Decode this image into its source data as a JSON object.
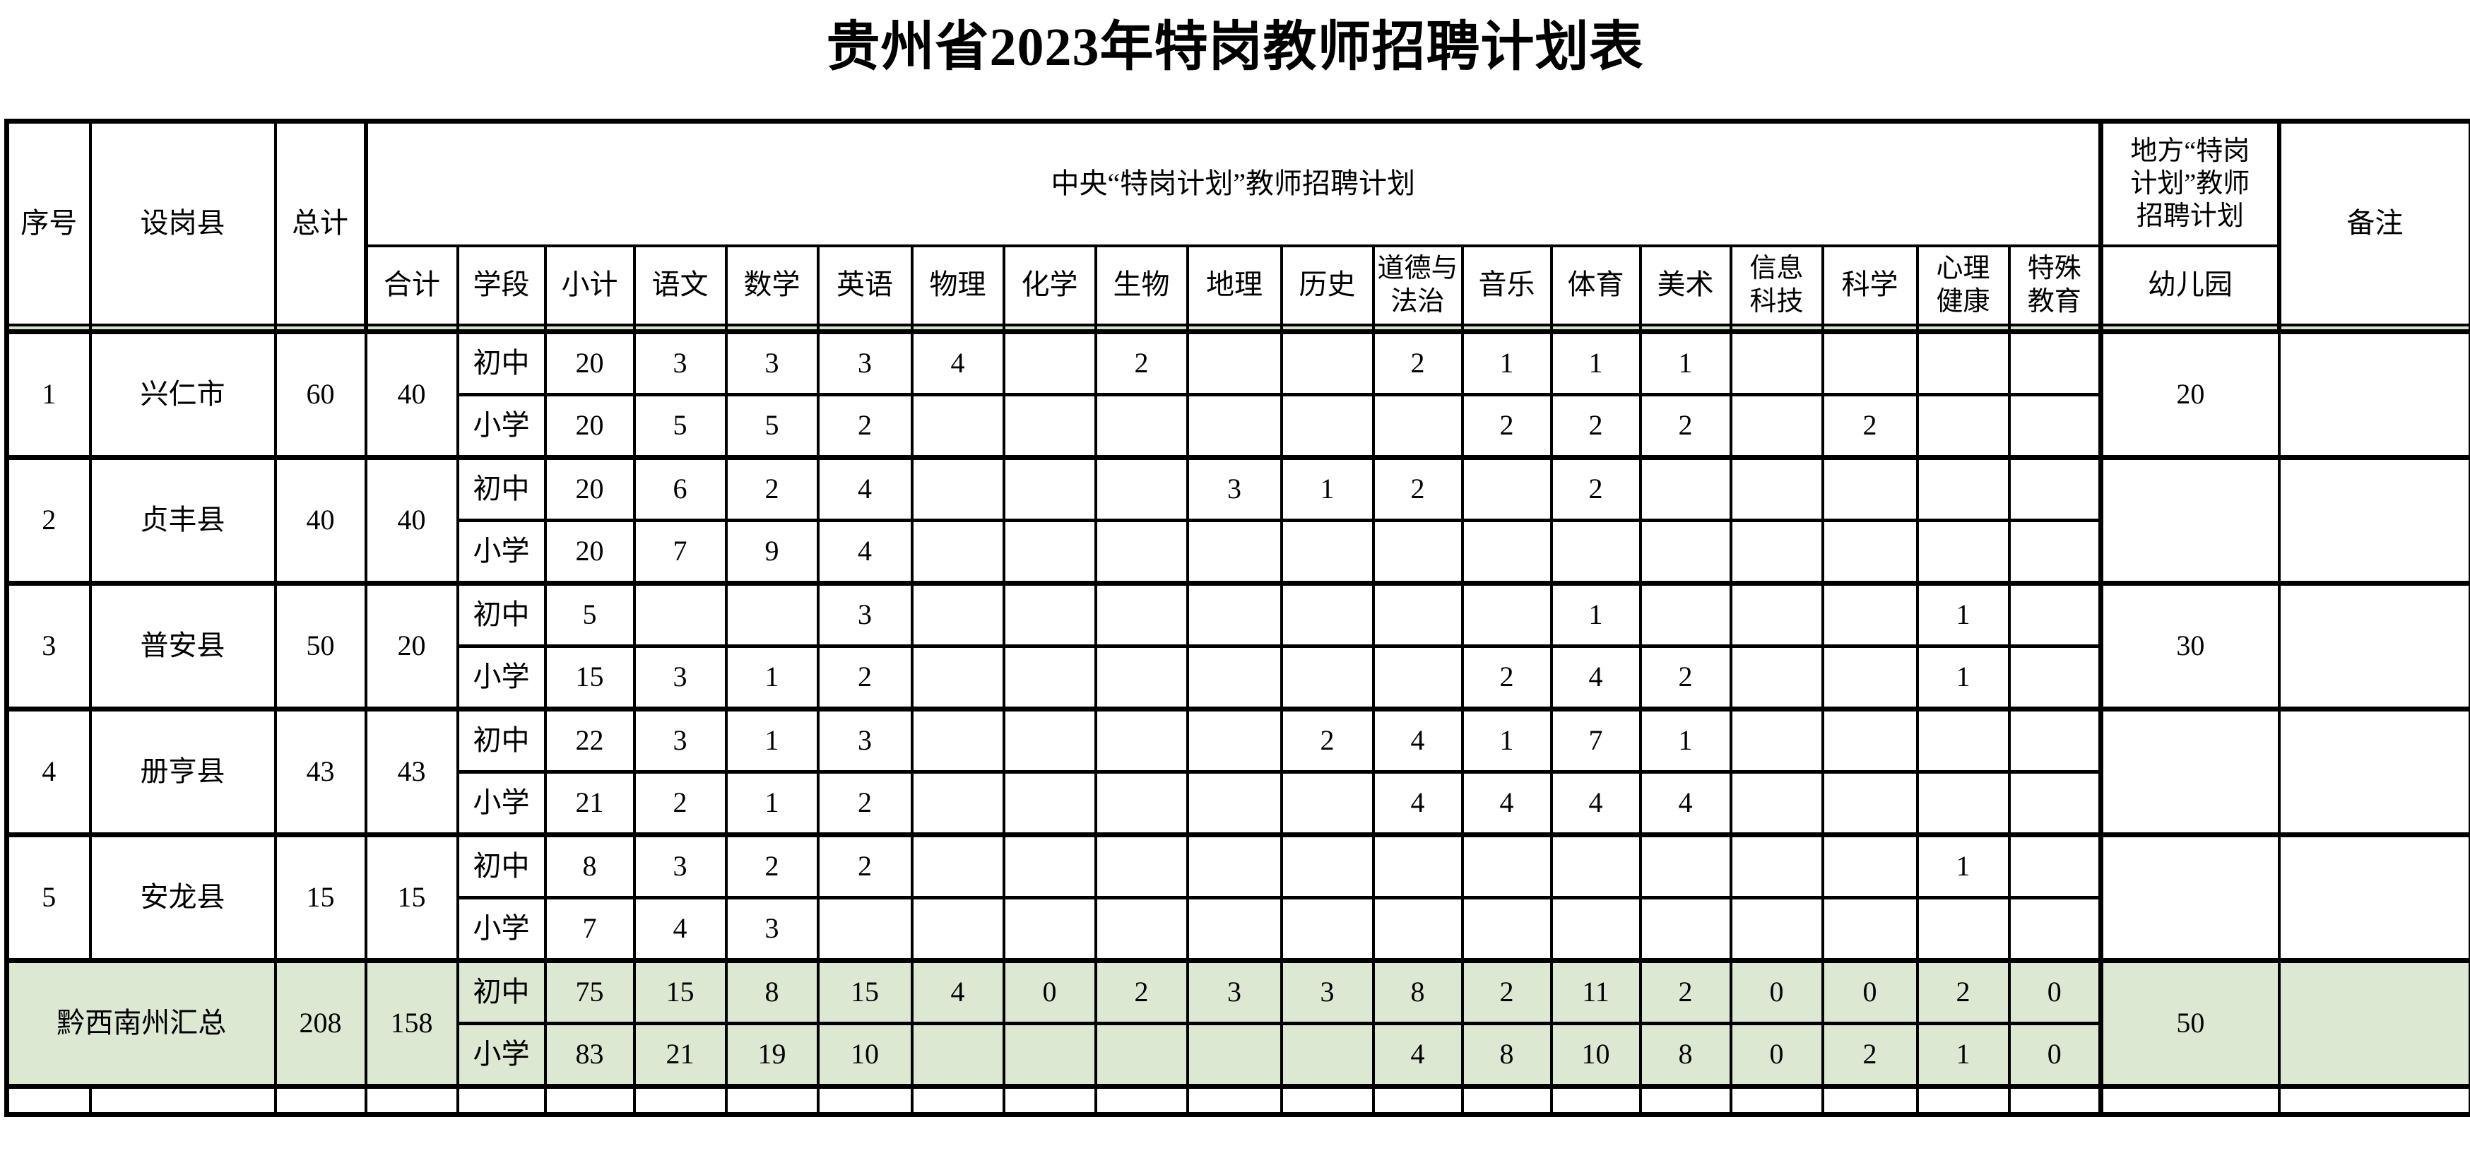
{
  "title": "贵州省2023年特岗教师招聘计划表",
  "colors": {
    "border": "#000000",
    "summary_row_bg": "#dde8d3",
    "header_strip_bg": "#d8e4c9"
  },
  "header": {
    "seq": "序号",
    "county": "设岗县",
    "total": "总计",
    "central_group": "中央“特岗计划”教师招聘计划",
    "local_group": "地方“特岗\n计划”教师\n招聘计划",
    "remark": "备注",
    "subtotal": "合计",
    "stage": "学段",
    "subjects": [
      "小计",
      "语文",
      "数学",
      "英语",
      "物理",
      "化学",
      "生物",
      "地理",
      "历史",
      "道德与\n法治",
      "音乐",
      "体育",
      "美术",
      "信息\n科技",
      "科学",
      "心理\n健康",
      "特殊\n教育"
    ],
    "kindergarten": "幼儿园"
  },
  "stages": {
    "junior": "初中",
    "primary": "小学"
  },
  "counties": [
    {
      "seq": "1",
      "name": "兴仁市",
      "total": "60",
      "subtotal": "40",
      "junior": [
        "20",
        "3",
        "3",
        "3",
        "4",
        "",
        "2",
        "",
        "",
        "2",
        "1",
        "1",
        "1",
        "",
        "",
        "",
        ""
      ],
      "primary": [
        "20",
        "5",
        "5",
        "2",
        "",
        "",
        "",
        "",
        "",
        "",
        "2",
        "2",
        "2",
        "",
        "2",
        "",
        ""
      ],
      "kindergarten": "20",
      "remark": ""
    },
    {
      "seq": "2",
      "name": "贞丰县",
      "total": "40",
      "subtotal": "40",
      "junior": [
        "20",
        "6",
        "2",
        "4",
        "",
        "",
        "",
        "3",
        "1",
        "2",
        "",
        "2",
        "",
        "",
        "",
        "",
        ""
      ],
      "primary": [
        "20",
        "7",
        "9",
        "4",
        "",
        "",
        "",
        "",
        "",
        "",
        "",
        "",
        "",
        "",
        "",
        "",
        ""
      ],
      "kindergarten": "",
      "remark": ""
    },
    {
      "seq": "3",
      "name": "普安县",
      "total": "50",
      "subtotal": "20",
      "junior": [
        "5",
        "",
        "",
        "3",
        "",
        "",
        "",
        "",
        "",
        "",
        "",
        "1",
        "",
        "",
        "",
        "1",
        ""
      ],
      "primary": [
        "15",
        "3",
        "1",
        "2",
        "",
        "",
        "",
        "",
        "",
        "",
        "2",
        "4",
        "2",
        "",
        "",
        "1",
        ""
      ],
      "kindergarten": "30",
      "remark": ""
    },
    {
      "seq": "4",
      "name": "册亨县",
      "total": "43",
      "subtotal": "43",
      "junior": [
        "22",
        "3",
        "1",
        "3",
        "",
        "",
        "",
        "",
        "2",
        "4",
        "1",
        "7",
        "1",
        "",
        "",
        "",
        ""
      ],
      "primary": [
        "21",
        "2",
        "1",
        "2",
        "",
        "",
        "",
        "",
        "",
        "4",
        "4",
        "4",
        "4",
        "",
        "",
        "",
        ""
      ],
      "kindergarten": "",
      "remark": ""
    },
    {
      "seq": "5",
      "name": "安龙县",
      "total": "15",
      "subtotal": "15",
      "junior": [
        "8",
        "3",
        "2",
        "2",
        "",
        "",
        "",
        "",
        "",
        "",
        "",
        "",
        "",
        "",
        "",
        "1",
        ""
      ],
      "primary": [
        "7",
        "4",
        "3",
        "",
        "",
        "",
        "",
        "",
        "",
        "",
        "",
        "",
        "",
        "",
        "",
        "",
        ""
      ],
      "kindergarten": "",
      "remark": ""
    }
  ],
  "summary": {
    "name": "黔西南州汇总",
    "total": "208",
    "subtotal": "158",
    "junior": [
      "75",
      "15",
      "8",
      "15",
      "4",
      "0",
      "2",
      "3",
      "3",
      "8",
      "2",
      "11",
      "2",
      "0",
      "0",
      "2",
      "0"
    ],
    "primary": [
      "83",
      "21",
      "19",
      "10",
      "",
      "",
      "",
      "",
      "",
      "4",
      "8",
      "10",
      "8",
      "0",
      "2",
      "1",
      "0"
    ],
    "kindergarten": "50",
    "remark": ""
  }
}
